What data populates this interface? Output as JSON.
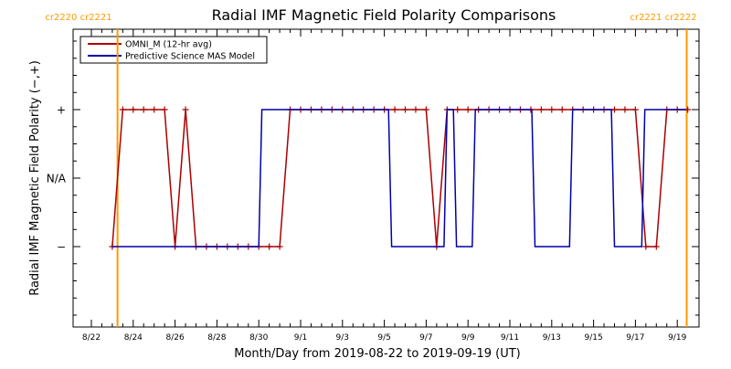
{
  "chart_data": {
    "type": "line",
    "title": "Radial IMF Magnetic Field Polarity Comparisons",
    "xlabel": "Month/Day from 2019-08-22 to 2019-09-19 (UT)",
    "ylabel": "Radial IMF Magnetic Field Polarity (−,+)",
    "x_range_days": [
      0,
      28.5
    ],
    "y_tick_labels": [
      "−",
      "N/A",
      "+"
    ],
    "y_tick_values": [
      -1,
      0,
      1
    ],
    "ylim": [
      -2.1,
      2.3
    ],
    "x_ticks": [
      {
        "label": "8/22",
        "day": 0
      },
      {
        "label": "8/24",
        "day": 2
      },
      {
        "label": "8/26",
        "day": 4
      },
      {
        "label": "8/28",
        "day": 6
      },
      {
        "label": "8/30",
        "day": 8
      },
      {
        "label": "9/1",
        "day": 10
      },
      {
        "label": "9/3",
        "day": 12
      },
      {
        "label": "9/5",
        "day": 14
      },
      {
        "label": "9/7",
        "day": 16
      },
      {
        "label": "9/9",
        "day": 18
      },
      {
        "label": "9/11",
        "day": 20
      },
      {
        "label": "9/13",
        "day": 22
      },
      {
        "label": "9/15",
        "day": 24
      },
      {
        "label": "9/17",
        "day": 26
      },
      {
        "label": "9/19",
        "day": 28
      }
    ],
    "carrington_markers": [
      {
        "day": 1.25,
        "label": "cr2220 cr2221"
      },
      {
        "day": 28.45,
        "label": "cr2221 cr2222"
      }
    ],
    "legend": [
      {
        "label": "OMNI_M (12-hr avg)",
        "color": "#aa0000"
      },
      {
        "label": "Predictive Science MAS Model",
        "color": "#0000aa"
      }
    ],
    "series": [
      {
        "name": "OMNI_M (12-hr avg)",
        "color": "#aa0000",
        "marker": "+",
        "x": [
          1.0,
          1.5,
          2.0,
          2.5,
          3.0,
          3.5,
          4.0,
          4.5,
          5.0,
          5.5,
          6.0,
          6.5,
          7.0,
          7.5,
          8.0,
          8.5,
          9.0,
          9.5,
          10.0,
          10.5,
          11.0,
          11.5,
          12.0,
          12.5,
          13.0,
          13.5,
          14.0,
          14.5,
          15.0,
          15.5,
          16.0,
          16.5,
          17.0,
          17.5,
          18.0,
          18.5,
          19.0,
          19.5,
          20.0,
          20.5,
          21.0,
          21.5,
          22.0,
          22.5,
          23.0,
          23.5,
          24.0,
          24.5,
          25.0,
          25.5,
          26.0,
          26.5,
          27.0,
          27.5,
          28.0,
          28.5
        ],
        "y": [
          -1,
          1,
          1,
          1,
          1,
          1,
          -1,
          1,
          -1,
          -1,
          -1,
          -1,
          -1,
          -1,
          -1,
          -1,
          -1,
          1,
          1,
          1,
          1,
          1,
          1,
          1,
          1,
          1,
          1,
          1,
          1,
          1,
          1,
          -1,
          1,
          1,
          1,
          1,
          1,
          1,
          1,
          1,
          1,
          1,
          1,
          1,
          1,
          1,
          1,
          1,
          1,
          1,
          1,
          -1,
          -1,
          1,
          1,
          1
        ]
      },
      {
        "name": "Predictive Science MAS Model",
        "color": "#0000aa",
        "marker": "none",
        "x": [
          1.0,
          8.0,
          8.15,
          14.2,
          14.35,
          16.85,
          17.0,
          17.3,
          17.45,
          18.2,
          18.35,
          21.05,
          21.2,
          22.85,
          23.0,
          24.85,
          25.0,
          26.3,
          26.45,
          28.4
        ],
        "y": [
          -1,
          -1,
          1,
          1,
          -1,
          -1,
          1,
          1,
          -1,
          -1,
          1,
          1,
          -1,
          -1,
          1,
          1,
          -1,
          -1,
          1,
          1
        ]
      }
    ]
  }
}
